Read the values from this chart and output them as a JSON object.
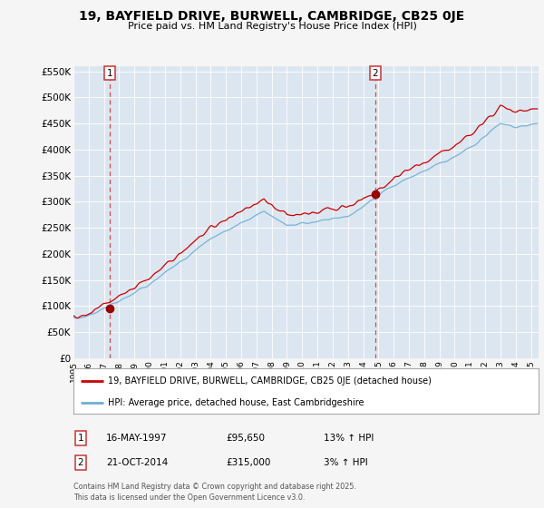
{
  "title": "19, BAYFIELD DRIVE, BURWELL, CAMBRIDGE, CB25 0JE",
  "subtitle": "Price paid vs. HM Land Registry's House Price Index (HPI)",
  "ylim": [
    0,
    560000
  ],
  "yticks": [
    0,
    50000,
    100000,
    150000,
    200000,
    250000,
    300000,
    350000,
    400000,
    450000,
    500000,
    550000
  ],
  "ytick_labels": [
    "£0",
    "£50K",
    "£100K",
    "£150K",
    "£200K",
    "£250K",
    "£300K",
    "£350K",
    "£400K",
    "£450K",
    "£500K",
    "£550K"
  ],
  "sale1_year": 1997.37,
  "sale1_price": 95650,
  "sale2_year": 2014.8,
  "sale2_price": 315000,
  "hpi_color": "#6baed6",
  "price_color": "#cc0000",
  "vline_color": "#cc3333",
  "dot_color": "#990000",
  "background_color": "#f5f5f5",
  "plot_bg_color": "#dce6f0",
  "grid_color": "#ffffff",
  "legend_label_price": "19, BAYFIELD DRIVE, BURWELL, CAMBRIDGE, CB25 0JE (detached house)",
  "legend_label_hpi": "HPI: Average price, detached house, East Cambridgeshire",
  "footer": "Contains HM Land Registry data © Crown copyright and database right 2025.\nThis data is licensed under the Open Government Licence v3.0.",
  "table_rows": [
    {
      "num": "1",
      "date": "16-MAY-1997",
      "price": "£95,650",
      "hpi": "13% ↑ HPI"
    },
    {
      "num": "2",
      "date": "21-OCT-2014",
      "price": "£315,000",
      "hpi": "3% ↑ HPI"
    }
  ],
  "xmin": 1995,
  "xmax": 2025.5
}
